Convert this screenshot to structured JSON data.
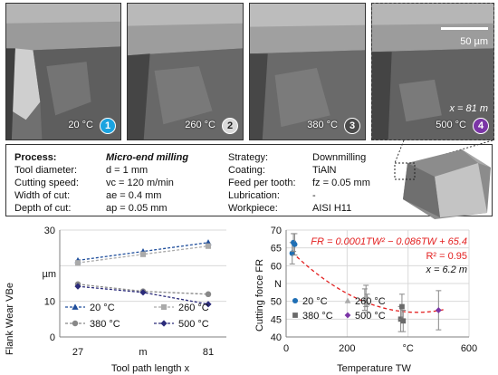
{
  "panels": [
    {
      "temp": "20 °C",
      "badge": "1",
      "badge_bg": "#1aa3e0",
      "badge_fg": "#fff"
    },
    {
      "temp": "260 °C",
      "badge": "2",
      "badge_bg": "#d9d9d9",
      "badge_fg": "#222"
    },
    {
      "temp": "380 °C",
      "badge": "3",
      "badge_bg": "#4a4a4a",
      "badge_fg": "#fff"
    },
    {
      "temp": "500 °C",
      "badge": "4",
      "badge_bg": "#7b35a6",
      "badge_fg": "#fff"
    }
  ],
  "scale_bar": "50 µm",
  "panel_x_label": "x = 81 m",
  "params": {
    "process_label": "Process:",
    "process_value": "Micro-end milling",
    "tool_diameter_label": "Tool diameter:",
    "tool_diameter_value": "d  = 1 mm",
    "cutting_speed_label": "Cutting speed:",
    "cutting_speed_value": "vc = 120 m/min",
    "width_label": "Width of cut:",
    "width_value": "ae = 0.4 mm",
    "depth_label": "Depth of cut:",
    "depth_value": "ap = 0.05 mm",
    "strategy_label": "Strategy:",
    "strategy_value": "Downmilling",
    "coating_label": "Coating:",
    "coating_value": "TiAlN",
    "feed_label": "Feed per tooth:",
    "feed_value": "fz = 0.05 mm",
    "lubrication_label": "Lubrication:",
    "lubrication_value": "-",
    "workpiece_label": "Workpiece:",
    "workpiece_value": "AISI H11"
  },
  "chart_data": [
    {
      "type": "line",
      "ylabel": "Flank Wear VBe",
      "ylabel_unit": "µm",
      "xlabel": "Tool path length x",
      "x_tick_labels": [
        "27",
        "m",
        "81"
      ],
      "x": [
        27,
        54,
        81
      ],
      "ylim": [
        0,
        30
      ],
      "y_ticks": [
        0,
        10,
        20,
        30
      ],
      "y_tick_labels": [
        "0",
        "10",
        "",
        "30"
      ],
      "series": [
        {
          "name": "20 °C",
          "values": [
            21.5,
            24.0,
            26.5
          ],
          "color": "#1f4e9c",
          "marker": "triangle",
          "dash": "3,2"
        },
        {
          "name": "260 °C",
          "values": [
            20.8,
            23.2,
            25.5
          ],
          "color": "#aaaaaa",
          "marker": "square",
          "dash": "3,2"
        },
        {
          "name": "380 °C",
          "values": [
            14.8,
            12.8,
            12.0
          ],
          "color": "#888888",
          "marker": "circle",
          "dash": "3,2"
        },
        {
          "name": "500 °C",
          "values": [
            14.2,
            12.5,
            9.2
          ],
          "color": "#2b2b7a",
          "marker": "diamond",
          "dash": "3,2"
        }
      ]
    },
    {
      "type": "scatter",
      "ylabel": "Cutting force FR",
      "xlabel": "Temperature TW",
      "x_tick_labels": [
        "0",
        "200",
        "°C",
        "600"
      ],
      "x_ticks": [
        0,
        200,
        400,
        600
      ],
      "xlim": [
        0,
        600
      ],
      "ylim": [
        40,
        70
      ],
      "y_ticks": [
        40,
        45,
        50,
        55,
        60,
        65,
        70
      ],
      "y_tick_labels": [
        "40",
        "45",
        "50",
        "N",
        "60",
        "65",
        "70"
      ],
      "fit_equation": "FR = 0.0001TW² − 0.086TW + 65.4",
      "fit_r2": "R² = 0.95",
      "fit_x_note": "x = 6.2 m",
      "fit": {
        "a": 0.0001,
        "b": -0.086,
        "c": 65.4,
        "x_range": [
          20,
          520
        ],
        "color": "#e31f1f"
      },
      "series": [
        {
          "name": "20 °C",
          "color": "#1f6fb5",
          "marker": "circle",
          "points": [
            {
              "x": 20,
              "y": 63.5,
              "err": 3.0
            },
            {
              "x": 24,
              "y": 66.5,
              "err": 2.5
            },
            {
              "x": 28,
              "y": 66.0,
              "err": 3.0
            }
          ]
        },
        {
          "name": "260 °C",
          "color": "#aaaaaa",
          "marker": "triangle",
          "points": [
            {
              "x": 258,
              "y": 50.5,
              "err": 3.0
            },
            {
              "x": 262,
              "y": 51.5,
              "err": 3.0
            },
            {
              "x": 266,
              "y": 49.5,
              "err": 2.5
            }
          ]
        },
        {
          "name": "380 °C",
          "color": "#6a6a6a",
          "marker": "square",
          "points": [
            {
              "x": 376,
              "y": 45.0,
              "err": 3.5
            },
            {
              "x": 380,
              "y": 48.5,
              "err": 3.5
            },
            {
              "x": 384,
              "y": 44.5,
              "err": 3.0
            }
          ]
        },
        {
          "name": "500 °C",
          "color": "#7b35a6",
          "marker": "diamond",
          "points": [
            {
              "x": 500,
              "y": 47.5,
              "err": 5.5
            }
          ]
        }
      ]
    }
  ]
}
